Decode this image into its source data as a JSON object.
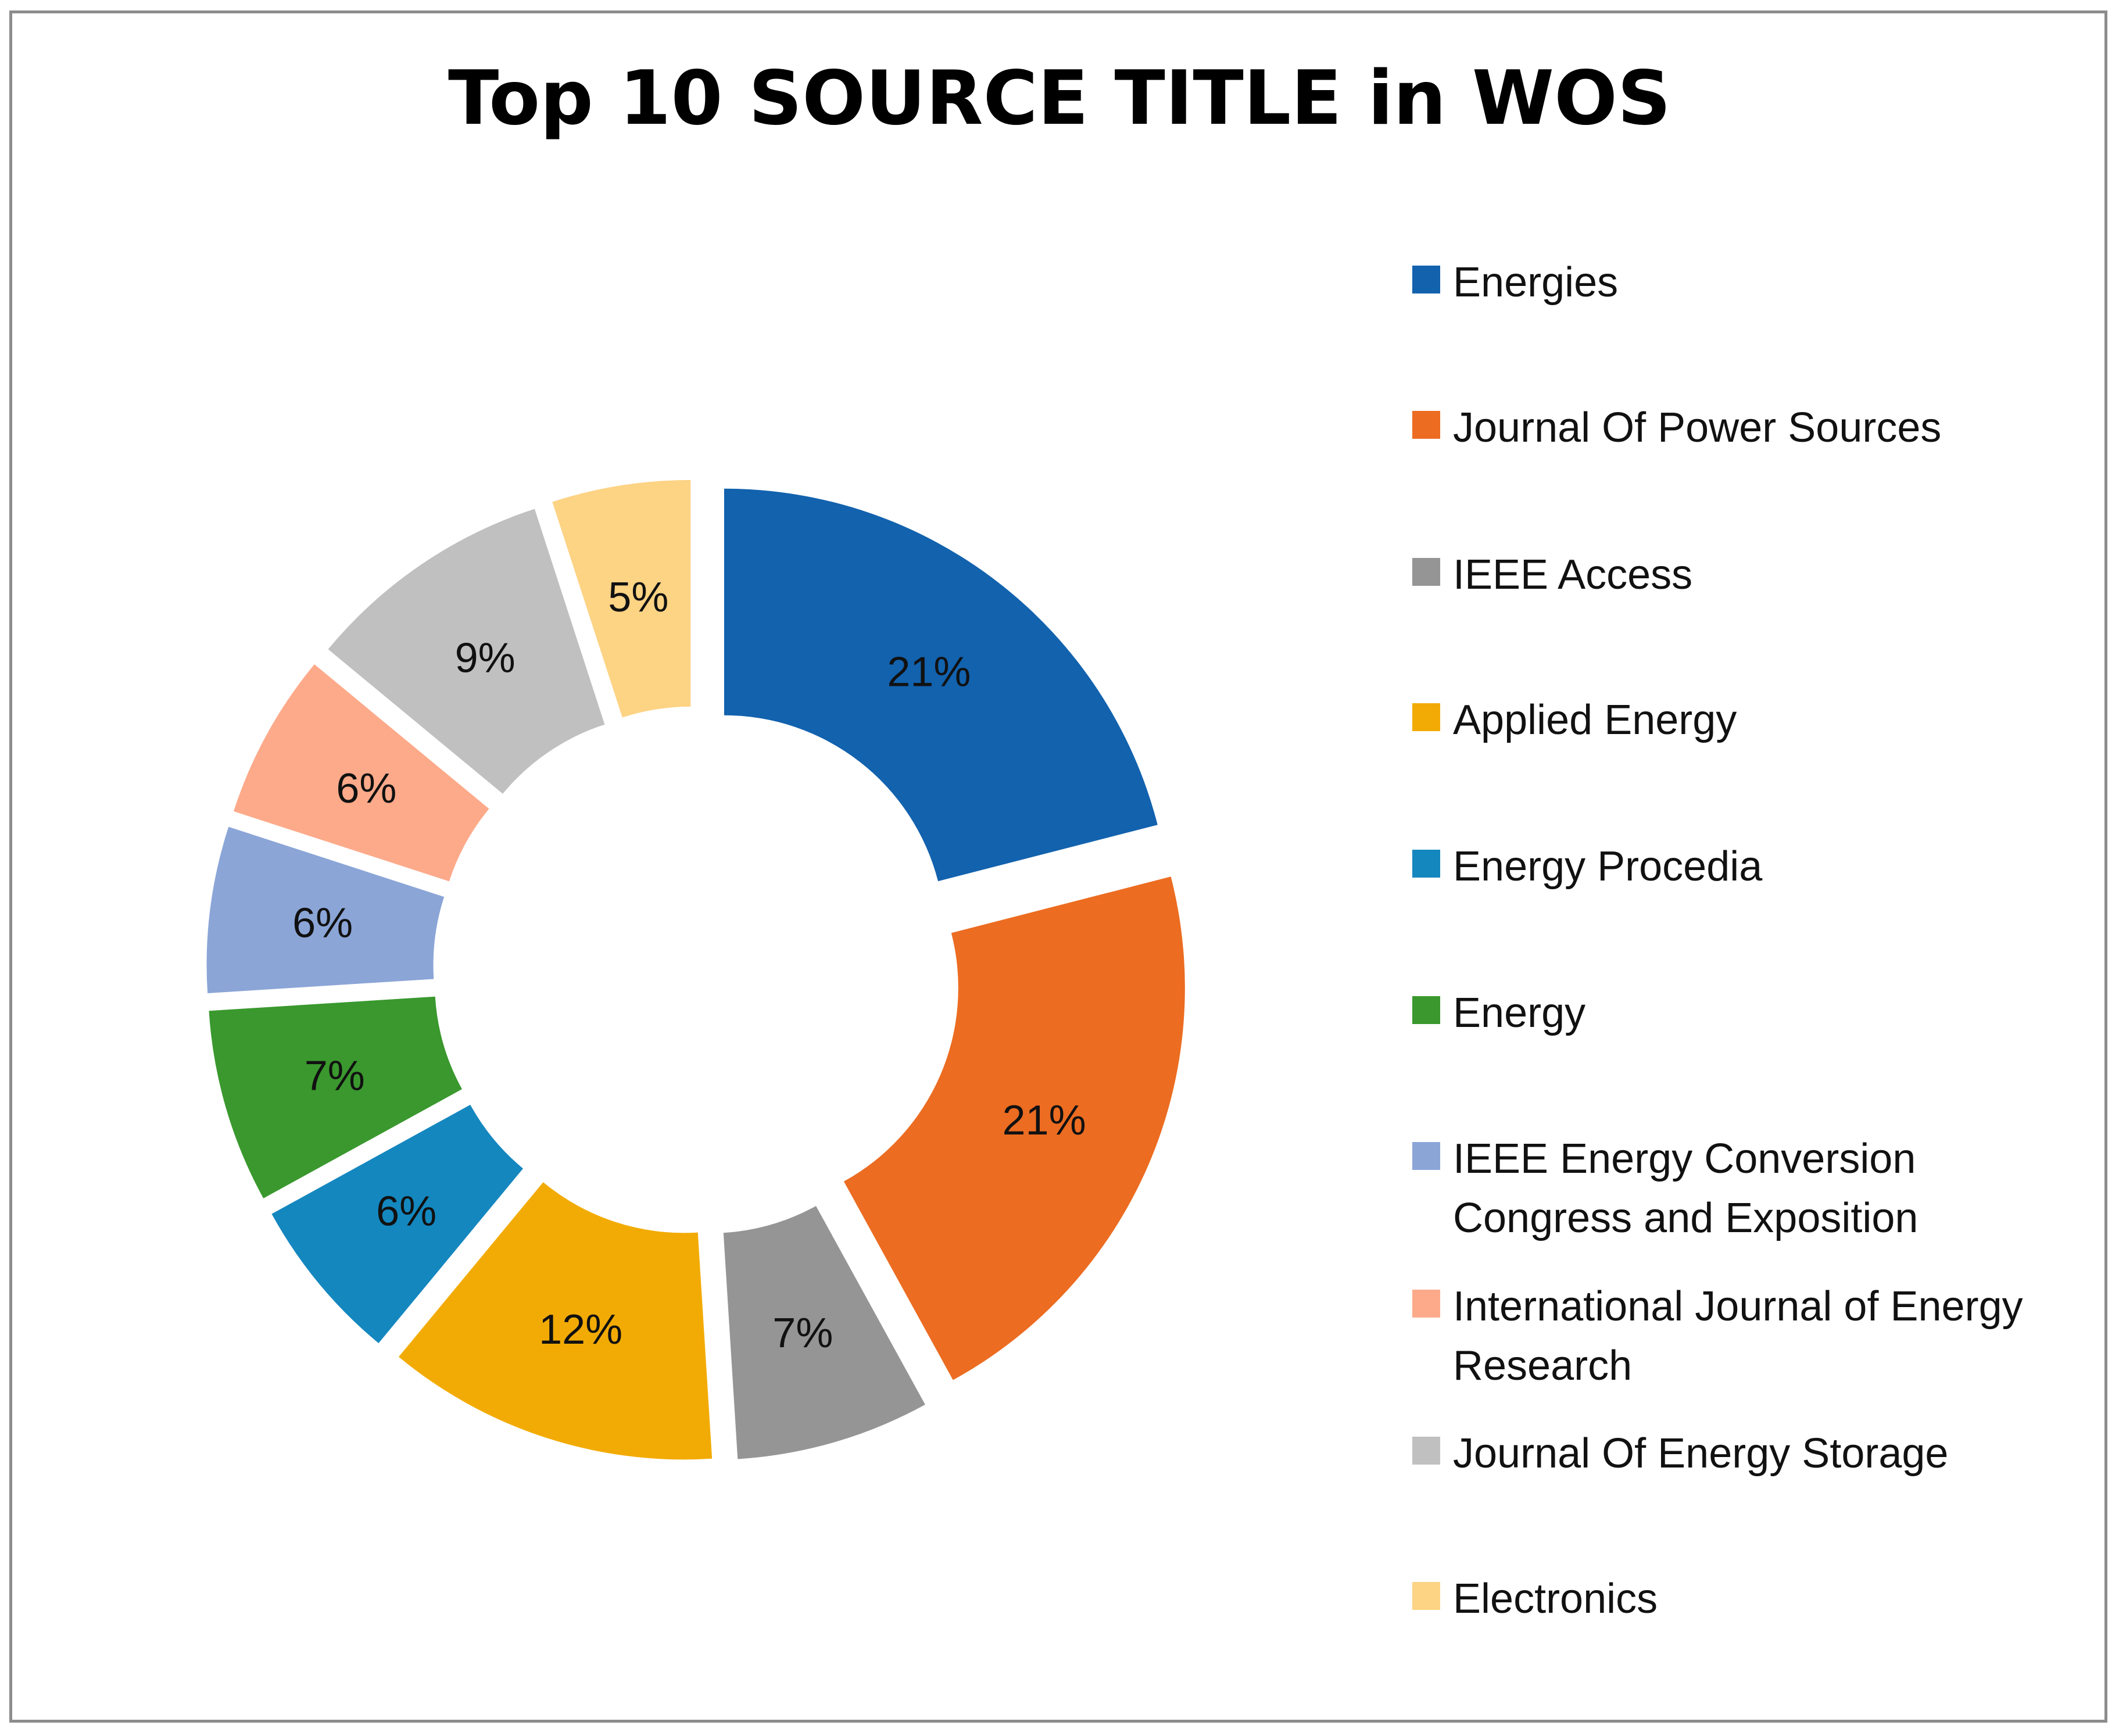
{
  "chart_data": {
    "type": "pie",
    "style": "donut",
    "title": "Top 10 SOURCE TITLE in WOS",
    "legend_position": "right",
    "slices": [
      {
        "name": "Energies",
        "value": 21,
        "label": "21%",
        "color": "#1262AE"
      },
      {
        "name": "Journal Of Power Sources",
        "value": 21,
        "label": "21%",
        "color": "#EC6C21"
      },
      {
        "name": "IEEE Access",
        "value": 7,
        "label": "7%",
        "color": "#959595"
      },
      {
        "name": "Applied Energy",
        "value": 12,
        "label": "12%",
        "color": "#F2AB04"
      },
      {
        "name": "Energy Procedia",
        "value": 6,
        "label": "6%",
        "color": "#1487BF"
      },
      {
        "name": "Energy",
        "value": 7,
        "label": "7%",
        "color": "#3A982E"
      },
      {
        "name": "IEEE Energy Conversion Congress and Exposition",
        "value": 6,
        "label": "6%",
        "color": "#8BA5D7"
      },
      {
        "name": "International Journal of Energy Research",
        "value": 6,
        "label": "6%",
        "color": "#FDAA8A"
      },
      {
        "name": "Journal Of Energy Storage",
        "value": 9,
        "label": "9%",
        "color": "#C0C0C0"
      },
      {
        "name": "Electronics",
        "value": 5,
        "label": "5%",
        "color": "#FDD384"
      }
    ]
  }
}
